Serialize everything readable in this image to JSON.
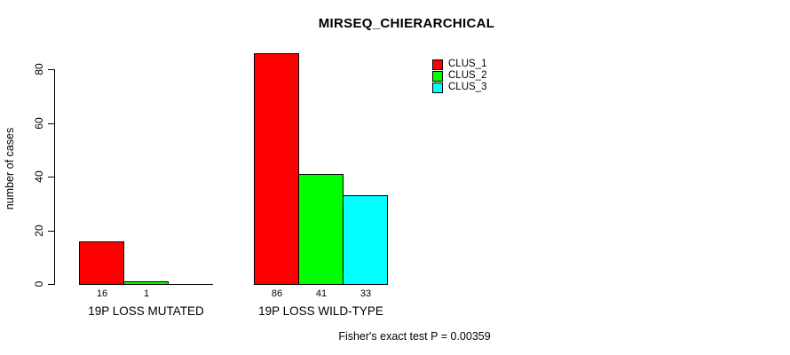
{
  "chart_data": {
    "type": "bar",
    "title": "MIRSEQ_CHIERARCHICAL",
    "ylabel": "number of cases",
    "xlabel": "",
    "categories": [
      "19P LOSS MUTATED",
      "19P LOSS WILD-TYPE"
    ],
    "series": [
      {
        "name": "CLUS_1",
        "color": "#ff0000",
        "values": [
          16,
          86
        ]
      },
      {
        "name": "CLUS_2",
        "color": "#00ff00",
        "values": [
          1,
          41
        ]
      },
      {
        "name": "CLUS_3",
        "color": "#00ffff",
        "values": [
          0,
          33
        ]
      }
    ],
    "bar_value_labels": [
      [
        "16",
        "1",
        ""
      ],
      [
        "86",
        "41",
        "33"
      ]
    ],
    "yticks": [
      0,
      20,
      40,
      60,
      80
    ],
    "ylim": [
      0,
      86
    ],
    "ytick_label_orientation": "vertical",
    "grid": false,
    "legend_position": "top-right",
    "legend_entries": [
      "CLUS_1",
      "CLUS_2",
      "CLUS_3"
    ],
    "annotation": "Fisher's exact test P = 0.00359",
    "bar_border_color": "#000000"
  }
}
